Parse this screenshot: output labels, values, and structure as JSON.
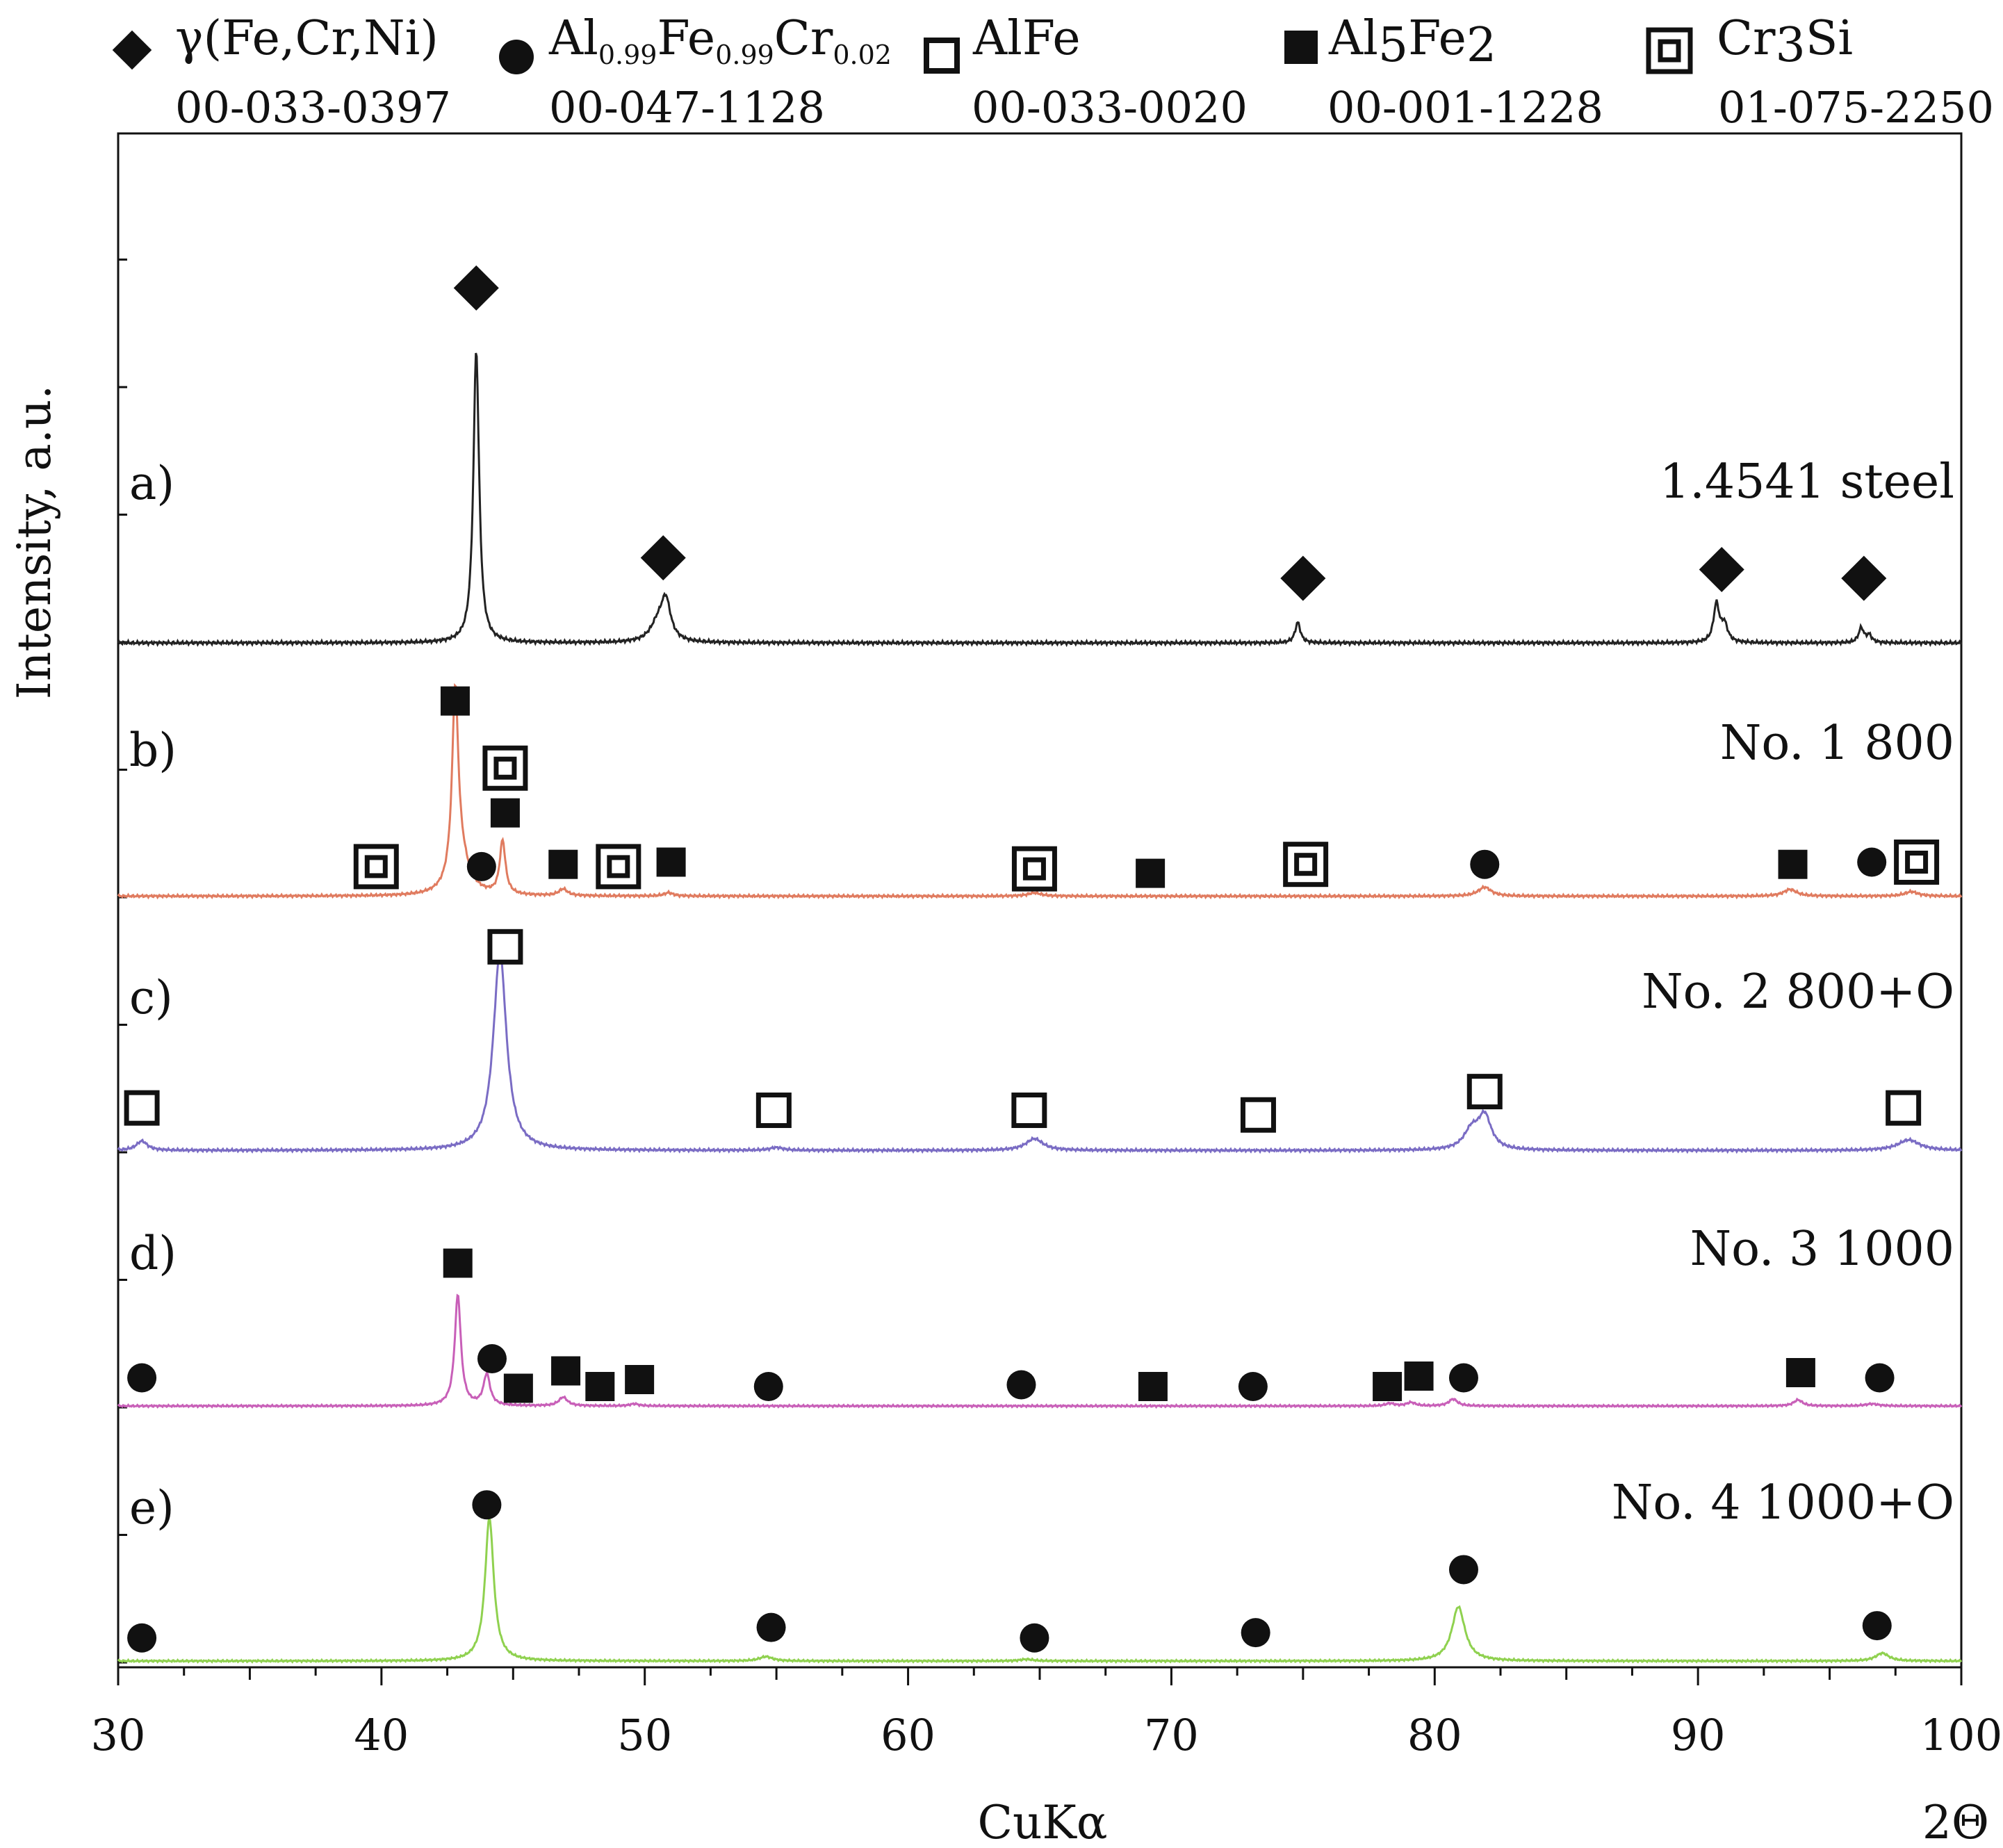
{
  "chart_data": {
    "type": "line",
    "title": "",
    "xlabel": "CuKα",
    "xunit": "2Θ",
    "ylabel": "Intensity, a.u.",
    "xlim": [
      30,
      100
    ],
    "x_ticks": [
      "30",
      "40",
      "50",
      "60",
      "70",
      "80",
      "90",
      "100"
    ],
    "x_tick_values": [
      30,
      40,
      50,
      60,
      70,
      80,
      90,
      100
    ],
    "grid": false,
    "legend": [
      {
        "symbol": "diamond",
        "name": "γ(Fe,Cr,Ni)",
        "card": "00-033-0397"
      },
      {
        "symbol": "circle",
        "name_parts": [
          "Al",
          "0.99",
          "Fe",
          "0.99",
          "Cr",
          "0.02"
        ],
        "card": "00-047-1128"
      },
      {
        "symbol": "open-square",
        "name": "AlFe",
        "card": "00-033-0020"
      },
      {
        "symbol": "filled-square",
        "name_parts": [
          "Al",
          "5",
          "Fe",
          "2"
        ],
        "card": "00-001-1228"
      },
      {
        "symbol": "double-square",
        "name_parts": [
          "Cr",
          "3",
          "Si"
        ],
        "card": "01-075-2250"
      }
    ],
    "series": [
      {
        "id": "a",
        "label": "a)",
        "name": "1.4541 steel",
        "color": "#222222",
        "peaks": [
          {
            "x": 43.6,
            "h": 1.0,
            "w": 0.13
          },
          {
            "x": 50.8,
            "h": 0.13,
            "w": 0.22
          },
          {
            "x": 50.5,
            "h": 0.06,
            "w": 0.35
          },
          {
            "x": 74.8,
            "h": 0.07,
            "w": 0.12
          },
          {
            "x": 90.7,
            "h": 0.13,
            "w": 0.13
          },
          {
            "x": 91.0,
            "h": 0.06,
            "w": 0.15
          },
          {
            "x": 96.2,
            "h": 0.05,
            "w": 0.12
          },
          {
            "x": 96.5,
            "h": 0.025,
            "w": 0.12
          }
        ],
        "markers": [
          {
            "sym": "diamond",
            "x": 43.6,
            "y": 1.21
          },
          {
            "sym": "diamond",
            "x": 50.7,
            "y": 0.29
          },
          {
            "sym": "diamond",
            "x": 75.0,
            "y": 0.22
          },
          {
            "sym": "diamond",
            "x": 90.9,
            "y": 0.25
          },
          {
            "sym": "diamond",
            "x": 96.3,
            "y": 0.22
          }
        ]
      },
      {
        "id": "b",
        "label": "b)",
        "name": "No. 1 800",
        "color": "#e07b5f",
        "peaks": [
          {
            "x": 42.8,
            "h": 0.83,
            "w": 0.14
          },
          {
            "x": 43.0,
            "h": 0.15,
            "w": 0.4
          },
          {
            "x": 44.6,
            "h": 0.24,
            "w": 0.13
          },
          {
            "x": 46.9,
            "h": 0.03,
            "w": 0.2
          },
          {
            "x": 50.9,
            "h": 0.015,
            "w": 0.2
          },
          {
            "x": 81.9,
            "h": 0.04,
            "w": 0.3
          },
          {
            "x": 93.5,
            "h": 0.03,
            "w": 0.3
          },
          {
            "x": 98.1,
            "h": 0.02,
            "w": 0.3
          },
          {
            "x": 64.8,
            "h": 0.015,
            "w": 0.3
          }
        ],
        "markers": [
          {
            "sym": "filled-square",
            "x": 42.8,
            "y": 0.88
          },
          {
            "sym": "double-square",
            "x": 44.7,
            "y": 0.58
          },
          {
            "sym": "filled-square",
            "x": 44.7,
            "y": 0.38
          },
          {
            "sym": "double-square",
            "x": 39.8,
            "y": 0.14
          },
          {
            "sym": "circle",
            "x": 43.8,
            "y": 0.14
          },
          {
            "sym": "filled-square",
            "x": 46.9,
            "y": 0.15
          },
          {
            "sym": "double-square",
            "x": 49.0,
            "y": 0.14
          },
          {
            "sym": "filled-square",
            "x": 51.0,
            "y": 0.16
          },
          {
            "sym": "double-square",
            "x": 64.8,
            "y": 0.13
          },
          {
            "sym": "filled-square",
            "x": 69.2,
            "y": 0.11
          },
          {
            "sym": "double-square",
            "x": 75.1,
            "y": 0.15
          },
          {
            "sym": "circle",
            "x": 81.9,
            "y": 0.15
          },
          {
            "sym": "filled-square",
            "x": 93.6,
            "y": 0.15
          },
          {
            "sym": "circle",
            "x": 96.6,
            "y": 0.16
          },
          {
            "sym": "double-square",
            "x": 98.3,
            "y": 0.16
          }
        ]
      },
      {
        "id": "c",
        "label": "c)",
        "name": "No. 2 800+O",
        "color": "#7a6cc4",
        "peaks": [
          {
            "x": 44.5,
            "h": 0.85,
            "w": 0.3
          },
          {
            "x": 30.9,
            "h": 0.04,
            "w": 0.25
          },
          {
            "x": 55.0,
            "h": 0.012,
            "w": 0.3
          },
          {
            "x": 64.8,
            "h": 0.05,
            "w": 0.4
          },
          {
            "x": 81.4,
            "h": 0.08,
            "w": 0.35
          },
          {
            "x": 81.9,
            "h": 0.14,
            "w": 0.3
          },
          {
            "x": 98.0,
            "h": 0.045,
            "w": 0.5
          }
        ],
        "markers": [
          {
            "sym": "open-square",
            "x": 44.7,
            "y": 0.88
          },
          {
            "sym": "open-square",
            "x": 30.9,
            "y": 0.19
          },
          {
            "sym": "open-square",
            "x": 54.9,
            "y": 0.18
          },
          {
            "sym": "open-square",
            "x": 64.6,
            "y": 0.18
          },
          {
            "sym": "open-square",
            "x": 73.3,
            "y": 0.16
          },
          {
            "sym": "open-square",
            "x": 81.9,
            "y": 0.26
          },
          {
            "sym": "open-square",
            "x": 97.8,
            "y": 0.19
          }
        ]
      },
      {
        "id": "d",
        "label": "d)",
        "name": "No. 3 1000",
        "color": "#c85fb8",
        "peaks": [
          {
            "x": 42.9,
            "h": 0.64,
            "w": 0.14
          },
          {
            "x": 44.0,
            "h": 0.18,
            "w": 0.15
          },
          {
            "x": 46.9,
            "h": 0.05,
            "w": 0.2
          },
          {
            "x": 49.6,
            "h": 0.012,
            "w": 0.2
          },
          {
            "x": 78.3,
            "h": 0.015,
            "w": 0.2
          },
          {
            "x": 79.1,
            "h": 0.02,
            "w": 0.2
          },
          {
            "x": 80.7,
            "h": 0.04,
            "w": 0.2
          },
          {
            "x": 93.8,
            "h": 0.035,
            "w": 0.2
          },
          {
            "x": 96.6,
            "h": 0.012,
            "w": 0.3
          }
        ],
        "markers": [
          {
            "sym": "filled-square",
            "x": 42.9,
            "y": 0.83
          },
          {
            "sym": "circle",
            "x": 44.2,
            "y": 0.28
          },
          {
            "sym": "circle",
            "x": 30.9,
            "y": 0.17
          },
          {
            "sym": "filled-square",
            "x": 45.2,
            "y": 0.11
          },
          {
            "sym": "filled-square",
            "x": 47.0,
            "y": 0.21
          },
          {
            "sym": "filled-square",
            "x": 48.3,
            "y": 0.12
          },
          {
            "sym": "filled-square",
            "x": 49.8,
            "y": 0.16
          },
          {
            "sym": "circle",
            "x": 54.7,
            "y": 0.12
          },
          {
            "sym": "circle",
            "x": 64.3,
            "y": 0.13
          },
          {
            "sym": "filled-square",
            "x": 69.3,
            "y": 0.12
          },
          {
            "sym": "circle",
            "x": 73.1,
            "y": 0.12
          },
          {
            "sym": "filled-square",
            "x": 78.2,
            "y": 0.12
          },
          {
            "sym": "filled-square",
            "x": 79.4,
            "y": 0.18
          },
          {
            "sym": "circle",
            "x": 81.1,
            "y": 0.17
          },
          {
            "sym": "filled-square",
            "x": 93.9,
            "y": 0.2
          },
          {
            "sym": "circle",
            "x": 96.9,
            "y": 0.17
          }
        ]
      },
      {
        "id": "e",
        "label": "e)",
        "name": "No. 4 1000+O",
        "color": "#8fd14f",
        "peaks": [
          {
            "x": 44.1,
            "h": 0.82,
            "w": 0.2
          },
          {
            "x": 54.6,
            "h": 0.025,
            "w": 0.3
          },
          {
            "x": 80.9,
            "h": 0.31,
            "w": 0.3
          },
          {
            "x": 97.0,
            "h": 0.045,
            "w": 0.3
          },
          {
            "x": 64.5,
            "h": 0.01,
            "w": 0.3
          }
        ],
        "markers": [
          {
            "sym": "circle",
            "x": 44.0,
            "y": 0.9
          },
          {
            "sym": "circle",
            "x": 30.9,
            "y": 0.14
          },
          {
            "sym": "circle",
            "x": 54.8,
            "y": 0.2
          },
          {
            "sym": "circle",
            "x": 64.8,
            "y": 0.14
          },
          {
            "sym": "circle",
            "x": 73.2,
            "y": 0.17
          },
          {
            "sym": "circle",
            "x": 81.1,
            "y": 0.53
          },
          {
            "sym": "circle",
            "x": 96.8,
            "y": 0.21
          }
        ]
      }
    ]
  }
}
